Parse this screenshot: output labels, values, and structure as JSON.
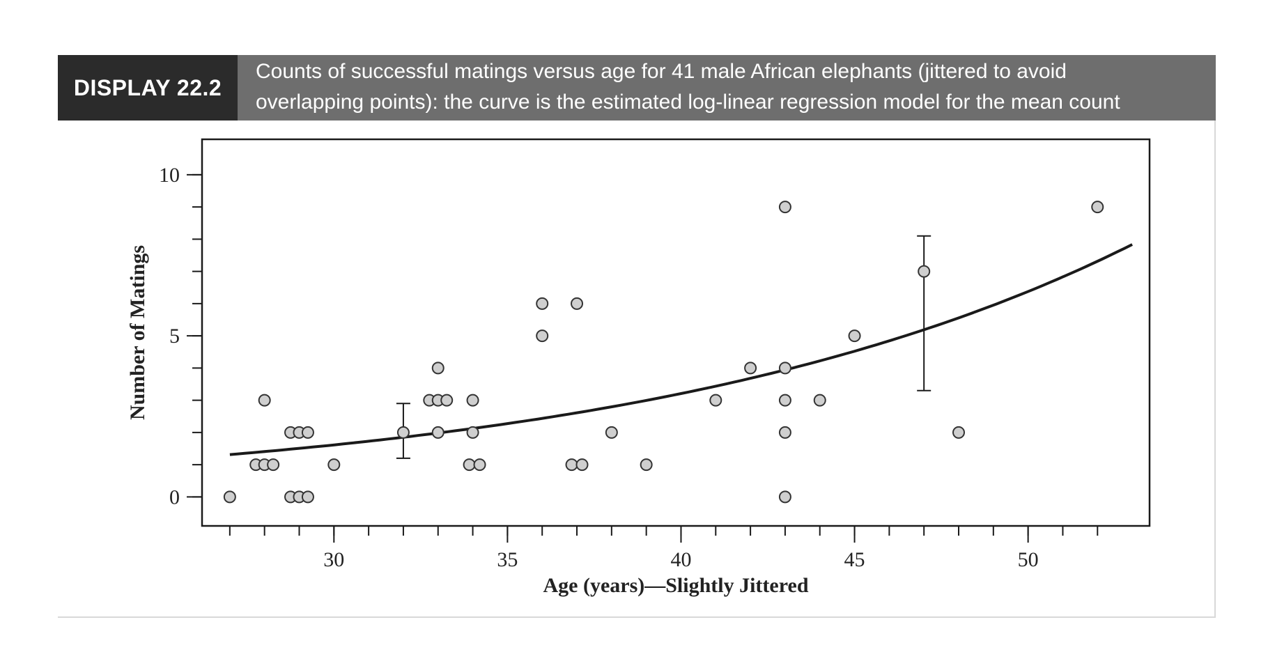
{
  "header": {
    "display_label": "DISPLAY 22.2",
    "caption_line1": "Counts of successful matings versus age for 41 male African elephants (jittered to avoid",
    "caption_line2": "overlapping points): the curve is the estimated log-linear regression model for the mean count"
  },
  "colors": {
    "label_bg": "#2b2b2b",
    "caption_bg": "#6e6e6e",
    "point_fill": "#cfcfcf",
    "curve": "#1a1a1a"
  },
  "chart_data": {
    "type": "scatter",
    "xlabel": "Age (years)—Slightly Jittered",
    "ylabel": "Number of Matings",
    "xlim": [
      26.2,
      53.5
    ],
    "ylim": [
      -0.9,
      11.1
    ],
    "x_ticks": [
      30,
      35,
      40,
      45,
      50
    ],
    "x_tick_labels": [
      "30",
      "35",
      "40",
      "45",
      "50"
    ],
    "x_minor_ticks": [
      27,
      28,
      29,
      30,
      31,
      32,
      33,
      34,
      35,
      36,
      37,
      38,
      39,
      40,
      41,
      42,
      43,
      44,
      45,
      46,
      47,
      48,
      49,
      50,
      51,
      52
    ],
    "y_ticks": [
      0,
      5,
      10
    ],
    "y_tick_labels": [
      "0",
      "5",
      "10"
    ],
    "y_minor_ticks": [
      0,
      1,
      2,
      3,
      4,
      5,
      6,
      7,
      8,
      9,
      10
    ],
    "grid": false,
    "points": [
      {
        "x": 27.0,
        "y": 0
      },
      {
        "x": 27.75,
        "y": 1
      },
      {
        "x": 28.0,
        "y": 1
      },
      {
        "x": 28.25,
        "y": 1
      },
      {
        "x": 28.0,
        "y": 3
      },
      {
        "x": 28.75,
        "y": 2
      },
      {
        "x": 29.0,
        "y": 2
      },
      {
        "x": 29.25,
        "y": 2
      },
      {
        "x": 28.75,
        "y": 0
      },
      {
        "x": 29.0,
        "y": 0
      },
      {
        "x": 29.25,
        "y": 0
      },
      {
        "x": 30.0,
        "y": 1
      },
      {
        "x": 32.0,
        "y": 2
      },
      {
        "x": 32.75,
        "y": 3
      },
      {
        "x": 33.0,
        "y": 3
      },
      {
        "x": 33.25,
        "y": 3
      },
      {
        "x": 33.0,
        "y": 4
      },
      {
        "x": 33.0,
        "y": 2
      },
      {
        "x": 33.9,
        "y": 1
      },
      {
        "x": 34.2,
        "y": 1
      },
      {
        "x": 34.0,
        "y": 3
      },
      {
        "x": 34.0,
        "y": 2
      },
      {
        "x": 36.0,
        "y": 6
      },
      {
        "x": 36.0,
        "y": 5
      },
      {
        "x": 36.85,
        "y": 1
      },
      {
        "x": 37.15,
        "y": 1
      },
      {
        "x": 37.0,
        "y": 6
      },
      {
        "x": 38.0,
        "y": 2
      },
      {
        "x": 39.0,
        "y": 1
      },
      {
        "x": 41.0,
        "y": 3
      },
      {
        "x": 42.0,
        "y": 4
      },
      {
        "x": 43.0,
        "y": 9
      },
      {
        "x": 43.0,
        "y": 4
      },
      {
        "x": 43.0,
        "y": 3
      },
      {
        "x": 43.0,
        "y": 2
      },
      {
        "x": 43.0,
        "y": 0
      },
      {
        "x": 44.0,
        "y": 3
      },
      {
        "x": 45.0,
        "y": 5
      },
      {
        "x": 47.0,
        "y": 7
      },
      {
        "x": 48.0,
        "y": 2
      },
      {
        "x": 52.0,
        "y": 9
      }
    ],
    "fitted_curve": {
      "model": "log-linear",
      "intercept": -1.582,
      "slope": 0.06869,
      "x_range": [
        27,
        53
      ]
    },
    "error_bars": [
      {
        "x": 32.0,
        "low": 1.2,
        "high": 2.9
      },
      {
        "x": 47.0,
        "low": 3.3,
        "high": 8.1
      }
    ]
  }
}
